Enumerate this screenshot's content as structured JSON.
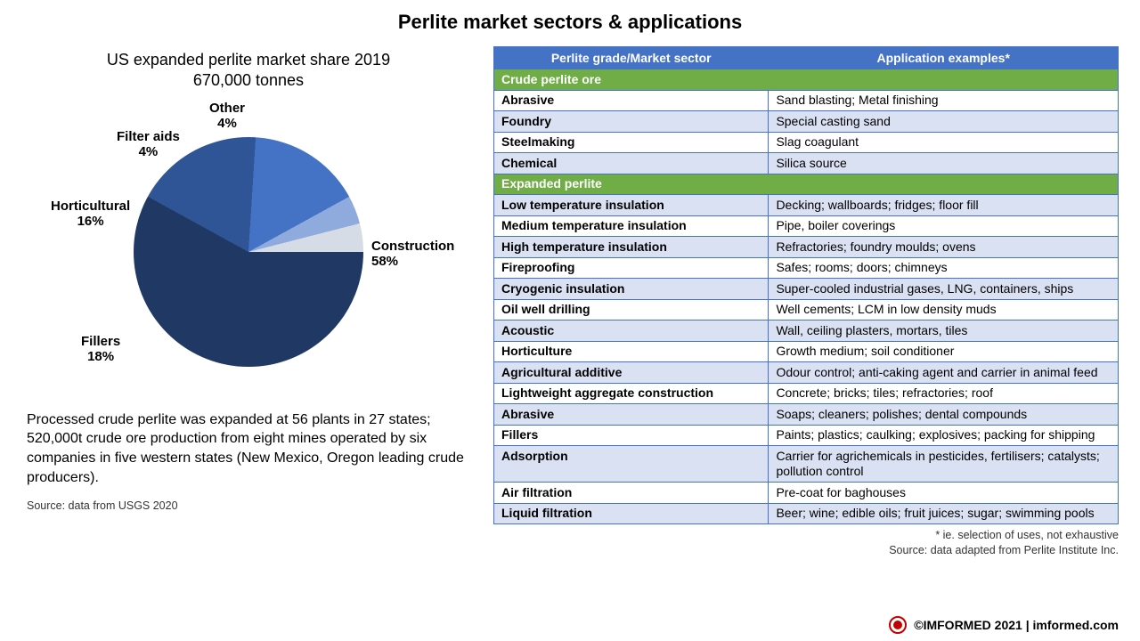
{
  "title": "Perlite market sectors & applications",
  "chart": {
    "title_l1": "US expanded perlite market share 2019",
    "title_l2": "670,000 tonnes",
    "type": "pie",
    "slices": [
      {
        "label": "Construction",
        "pct": 58,
        "pct_txt": "58%",
        "color": "#203864"
      },
      {
        "label": "Fillers",
        "pct": 18,
        "pct_txt": "18%",
        "color": "#2f5597"
      },
      {
        "label": "Horticultural",
        "pct": 16,
        "pct_txt": "16%",
        "color": "#4472c4"
      },
      {
        "label": "Filter aids",
        "pct": 4,
        "pct_txt": "4%",
        "color": "#8faadc"
      },
      {
        "label": "Other",
        "pct": 4,
        "pct_txt": "4%",
        "color": "#d6dce5"
      }
    ],
    "label_fontsize": 15,
    "border_color": "#ffffff"
  },
  "description": "Processed crude perlite was expanded at 56 plants in 27 states; 520,000t crude ore production from eight mines operated by six companies in five western states (New Mexico, Oregon leading crude producers).",
  "source_left": "Source: data from USGS 2020",
  "table": {
    "headers": [
      "Perlite grade/Market sector",
      "Application examples*"
    ],
    "header_bg": "#4472c4",
    "header_fg": "#ffffff",
    "section_bg": "#70ad47",
    "alt_bg": "#d9e1f2",
    "border_color": "#4472c4",
    "rows": [
      {
        "type": "section",
        "sector": "Crude perlite ore",
        "app": ""
      },
      {
        "type": "row",
        "cls": "plain",
        "sector": "Abrasive",
        "app": "Sand blasting; Metal finishing"
      },
      {
        "type": "row",
        "cls": "alt",
        "sector": "Foundry",
        "app": "Special casting sand"
      },
      {
        "type": "row",
        "cls": "plain",
        "sector": "Steelmaking",
        "app": "Slag coagulant"
      },
      {
        "type": "row",
        "cls": "alt",
        "sector": "Chemical",
        "app": "Silica source"
      },
      {
        "type": "section",
        "sector": "Expanded perlite",
        "app": ""
      },
      {
        "type": "row",
        "cls": "alt",
        "sector": "Low temperature insulation",
        "app": "Decking; wallboards; fridges; floor fill"
      },
      {
        "type": "row",
        "cls": "plain",
        "sector": "Medium temperature insulation",
        "app": "Pipe, boiler coverings"
      },
      {
        "type": "row",
        "cls": "alt",
        "sector": "High temperature insulation",
        "app": "Refractories; foundry moulds; ovens"
      },
      {
        "type": "row",
        "cls": "plain",
        "sector": "Fireproofing",
        "app": "Safes; rooms; doors; chimneys"
      },
      {
        "type": "row",
        "cls": "alt",
        "sector": "Cryogenic insulation",
        "app": "Super-cooled industrial gases, LNG, containers, ships"
      },
      {
        "type": "row",
        "cls": "plain",
        "sector": "Oil well drilling",
        "app": "Well cements; LCM in low density muds"
      },
      {
        "type": "row",
        "cls": "alt",
        "sector": "Acoustic",
        "app": "Wall, ceiling plasters, mortars, tiles"
      },
      {
        "type": "row",
        "cls": "plain",
        "sector": "Horticulture",
        "app": "Growth medium; soil conditioner"
      },
      {
        "type": "row",
        "cls": "alt",
        "sector": "Agricultural additive",
        "app": "Odour control; anti-caking agent and carrier in animal feed"
      },
      {
        "type": "row",
        "cls": "plain",
        "sector": "Lightweight aggregate construction",
        "app": "Concrete; bricks; tiles; refractories; roof"
      },
      {
        "type": "row",
        "cls": "alt",
        "sector": "Abrasive",
        "app": "Soaps; cleaners; polishes; dental compounds"
      },
      {
        "type": "row",
        "cls": "plain",
        "sector": "Fillers",
        "app": "Paints; plastics; caulking; explosives; packing for shipping"
      },
      {
        "type": "row",
        "cls": "alt",
        "sector": "Adsorption",
        "app": "Carrier for agrichemicals in pesticides, fertilisers; catalysts; pollution control"
      },
      {
        "type": "row",
        "cls": "plain",
        "sector": "Air filtration",
        "app": "Pre-coat for baghouses"
      },
      {
        "type": "row",
        "cls": "alt",
        "sector": "Liquid filtration",
        "app": "Beer; wine; edible oils; fruit juices; sugar; swimming pools"
      }
    ]
  },
  "note1": "* ie. selection of uses, not exhaustive",
  "note2": "Source: data adapted from Perlite Institute Inc.",
  "footer": "©IMFORMED 2021  | imformed.com"
}
